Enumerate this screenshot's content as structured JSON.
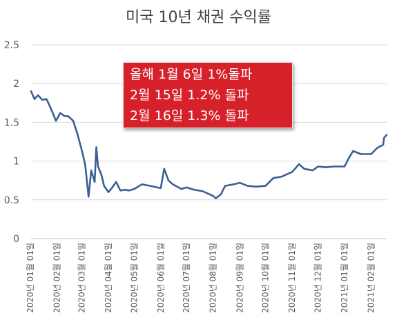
{
  "chart_data": {
    "type": "line",
    "title": "미국 10년 채권 수익률",
    "xlabel": "",
    "ylabel": "",
    "ylim": [
      0,
      2.5
    ],
    "yticks": [
      "0",
      "0.5",
      "1",
      "1.5",
      "2",
      "2.5"
    ],
    "grid": true,
    "xticks": [
      "2020년 01월 01일",
      "2020년 02월 01일",
      "2020년 03월 01일",
      "2020년 04월 01일",
      "2020년 05월 01일",
      "2020년 06월 01일",
      "2020년 07월 01일",
      "2020년 08월 01일",
      "2020년 09월 01일",
      "2020년 10월 01일",
      "2020년 11월 01일",
      "2020년 12월 01일",
      "2021년 01월 01일",
      "2021년 02월 01일"
    ],
    "annotation": [
      "올해 1월 6일 1%돌파",
      "2월 15일 1.2% 돌파",
      "2월 16일 1.3% 돌파"
    ],
    "line_color": "#3a5f94",
    "series": [
      {
        "x": [
          "2020-01-02",
          "2020-01-06",
          "2020-01-10",
          "2020-01-15",
          "2020-01-20",
          "2020-01-25",
          "2020-01-31",
          "2020-02-05",
          "2020-02-10",
          "2020-02-14",
          "2020-02-20",
          "2020-02-25",
          "2020-03-02",
          "2020-03-05",
          "2020-03-09",
          "2020-03-12",
          "2020-03-16",
          "2020-03-18",
          "2020-03-20",
          "2020-03-24",
          "2020-03-27",
          "2020-04-01",
          "2020-04-05",
          "2020-04-10",
          "2020-04-15",
          "2020-04-20",
          "2020-04-25",
          "2020-05-01",
          "2020-05-10",
          "2020-05-20",
          "2020-06-01",
          "2020-06-05",
          "2020-06-10",
          "2020-06-15",
          "2020-06-25",
          "2020-07-01",
          "2020-07-10",
          "2020-07-20",
          "2020-08-01",
          "2020-08-04",
          "2020-08-10",
          "2020-08-15",
          "2020-08-25",
          "2020-09-01",
          "2020-09-10",
          "2020-09-20",
          "2020-10-01",
          "2020-10-10",
          "2020-10-20",
          "2020-11-01",
          "2020-11-09",
          "2020-11-15",
          "2020-11-25",
          "2020-12-01",
          "2020-12-10",
          "2020-12-20",
          "2021-01-01",
          "2021-01-06",
          "2021-01-11",
          "2021-01-20",
          "2021-02-01",
          "2021-02-08",
          "2021-02-15",
          "2021-02-16",
          "2021-02-19"
        ],
        "values": [
          1.9,
          1.8,
          1.85,
          1.79,
          1.8,
          1.68,
          1.52,
          1.62,
          1.58,
          1.58,
          1.52,
          1.35,
          1.1,
          0.95,
          0.54,
          0.88,
          0.73,
          1.18,
          0.93,
          0.82,
          0.68,
          0.6,
          0.65,
          0.73,
          0.62,
          0.63,
          0.62,
          0.64,
          0.7,
          0.68,
          0.65,
          0.9,
          0.75,
          0.7,
          0.64,
          0.66,
          0.63,
          0.61,
          0.55,
          0.52,
          0.57,
          0.68,
          0.7,
          0.72,
          0.68,
          0.67,
          0.68,
          0.78,
          0.8,
          0.86,
          0.96,
          0.9,
          0.88,
          0.93,
          0.92,
          0.93,
          0.93,
          1.04,
          1.13,
          1.09,
          1.09,
          1.17,
          1.21,
          1.3,
          1.34
        ]
      }
    ]
  }
}
